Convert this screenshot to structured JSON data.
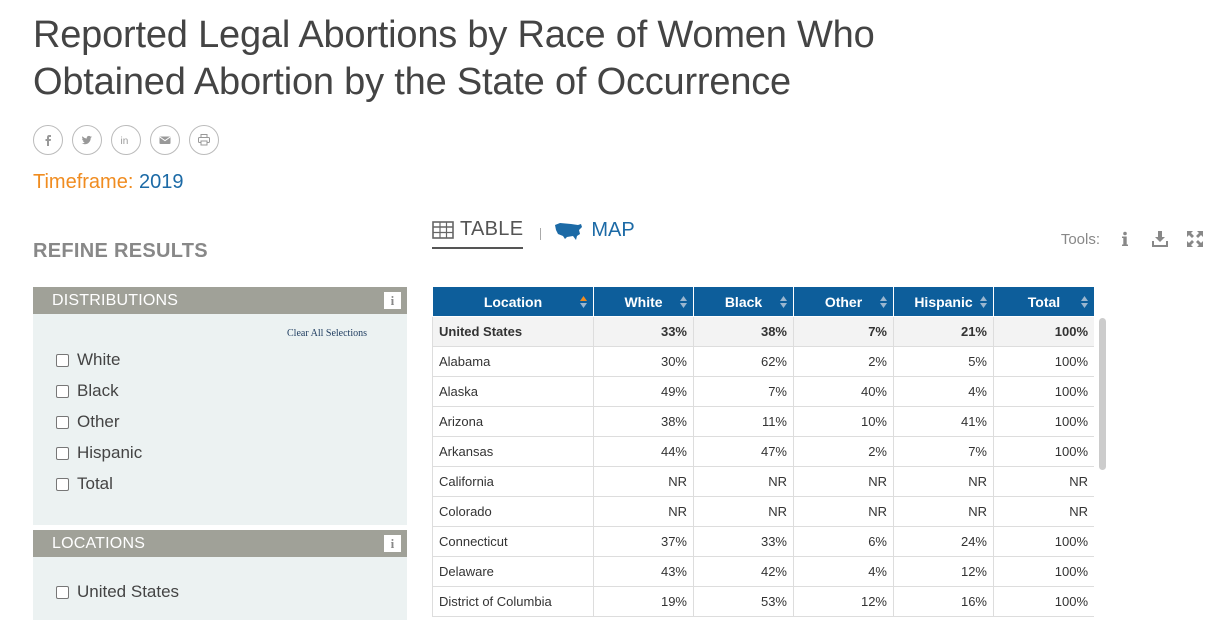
{
  "page": {
    "title": "Reported Legal Abortions by Race of Women Who Obtained Abortion by the State of Occurrence"
  },
  "share": [
    "facebook-icon",
    "twitter-icon",
    "linkedin-icon",
    "email-icon",
    "print-icon"
  ],
  "timeframe": {
    "label": "Timeframe:",
    "value": "2019"
  },
  "refine": {
    "title": "REFINE RESULTS"
  },
  "distributions": {
    "header": "DISTRIBUTIONS",
    "clear": "Clear All Selections",
    "options": [
      "White",
      "Black",
      "Other",
      "Hispanic",
      "Total"
    ]
  },
  "locations": {
    "header": "LOCATIONS",
    "options": [
      "United States"
    ]
  },
  "views": {
    "table": "TABLE",
    "map": "MAP"
  },
  "tools": {
    "label": "Tools:"
  },
  "table": {
    "headers": [
      "Location",
      "White",
      "Black",
      "Other",
      "Hispanic",
      "Total"
    ],
    "rows": [
      [
        "United States",
        "33%",
        "38%",
        "7%",
        "21%",
        "100%"
      ],
      [
        "Alabama",
        "30%",
        "62%",
        "2%",
        "5%",
        "100%"
      ],
      [
        "Alaska",
        "49%",
        "7%",
        "40%",
        "4%",
        "100%"
      ],
      [
        "Arizona",
        "38%",
        "11%",
        "10%",
        "41%",
        "100%"
      ],
      [
        "Arkansas",
        "44%",
        "47%",
        "2%",
        "7%",
        "100%"
      ],
      [
        "California",
        "NR",
        "NR",
        "NR",
        "NR",
        "NR"
      ],
      [
        "Colorado",
        "NR",
        "NR",
        "NR",
        "NR",
        "NR"
      ],
      [
        "Connecticut",
        "37%",
        "33%",
        "6%",
        "24%",
        "100%"
      ],
      [
        "Delaware",
        "43%",
        "42%",
        "4%",
        "12%",
        "100%"
      ],
      [
        "District of Columbia",
        "19%",
        "53%",
        "12%",
        "16%",
        "100%"
      ]
    ]
  },
  "colors": {
    "header": "#0d5e9b",
    "accent": "#f08c20",
    "link": "#1c6aa6",
    "panel": "#ecf2f2",
    "panelHead": "#a0a198"
  }
}
